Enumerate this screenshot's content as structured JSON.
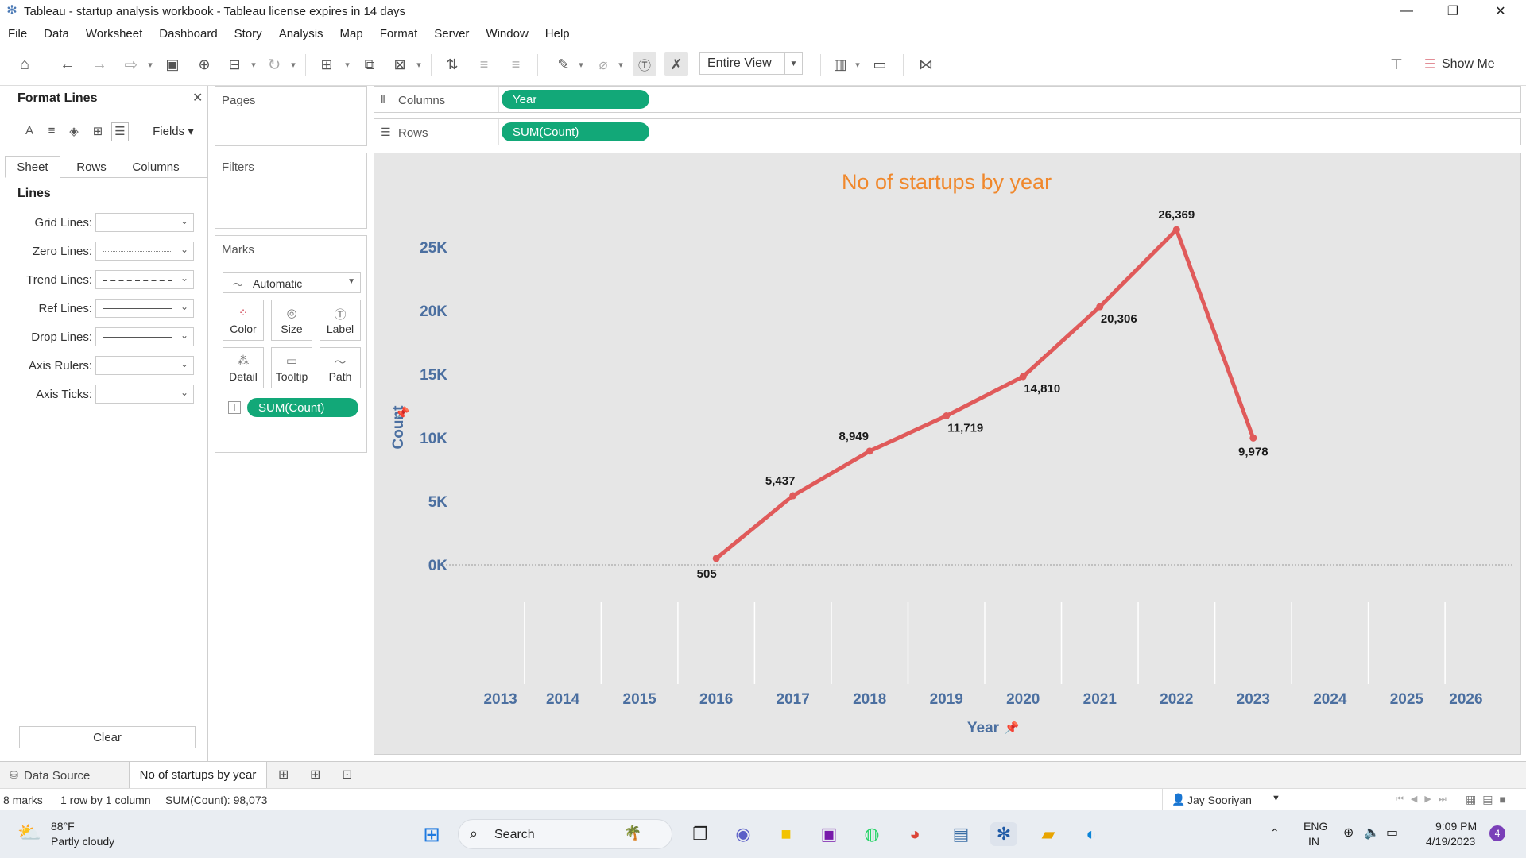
{
  "window": {
    "title": "Tableau - startup analysis workbook - Tableau license expires in 14 days",
    "minimize": "—",
    "restore": "❐",
    "close": "✕"
  },
  "menu": [
    "File",
    "Data",
    "Worksheet",
    "Dashboard",
    "Story",
    "Analysis",
    "Map",
    "Format",
    "Server",
    "Window",
    "Help"
  ],
  "toolbar": {
    "fit_value": "Entire View",
    "show_me": "Show Me"
  },
  "format_panel": {
    "title": "Format Lines",
    "fields_label": "Fields",
    "tabs": [
      "Sheet",
      "Rows",
      "Columns"
    ],
    "section": "Lines",
    "rows": [
      {
        "label": "Grid Lines:",
        "style": "none"
      },
      {
        "label": "Zero Lines:",
        "style": "dotted"
      },
      {
        "label": "Trend Lines:",
        "style": "dashed"
      },
      {
        "label": "Ref Lines:",
        "style": "solid"
      },
      {
        "label": "Drop Lines:",
        "style": "solid"
      },
      {
        "label": "Axis Rulers:",
        "style": "none"
      },
      {
        "label": "Axis Ticks:",
        "style": "none"
      }
    ],
    "clear_label": "Clear"
  },
  "cards": {
    "pages": "Pages",
    "filters": "Filters",
    "marks": "Marks",
    "mark_type": "Automatic",
    "mark_buttons": [
      "Color",
      "Size",
      "Label",
      "Detail",
      "Tooltip",
      "Path"
    ],
    "marks_pill": "SUM(Count)"
  },
  "shelves": {
    "columns_label": "Columns",
    "columns_pill": "Year",
    "rows_label": "Rows",
    "rows_pill": "SUM(Count)"
  },
  "chart_data": {
    "type": "line",
    "title": "No of startups by year",
    "xlabel": "Year",
    "ylabel": "Count",
    "x_ticks": [
      2013,
      2014,
      2015,
      2016,
      2017,
      2018,
      2019,
      2020,
      2021,
      2022,
      2023,
      2024,
      2025,
      2026
    ],
    "y_ticks": [
      "0K",
      "5K",
      "10K",
      "15K",
      "20K",
      "25K"
    ],
    "xlim": [
      2012.6,
      2026.4
    ],
    "ylim": [
      -2000,
      28000
    ],
    "x": [
      2016,
      2017,
      2018,
      2019,
      2020,
      2021,
      2022,
      2023
    ],
    "values": [
      505,
      5437,
      8949,
      11719,
      14810,
      20306,
      26369,
      9978
    ],
    "labels": [
      "505",
      "5,437",
      "8,949",
      "11,719",
      "14,810",
      "20,306",
      "26,369",
      "9,978"
    ],
    "color": "#e05a5a",
    "title_color": "#f0882c",
    "axis_color": "#4b6fa0",
    "grid": false
  },
  "sheet_tabs": {
    "data_source": "Data Source",
    "active_sheet": "No of startups by year"
  },
  "status": {
    "marks": "8 marks",
    "layout": "1 row by 1 column",
    "sum": "SUM(Count): 98,073",
    "user": "Jay Sooriyan"
  },
  "taskbar": {
    "temp": "88°F",
    "weather": "Partly cloudy",
    "search": "Search",
    "lang1": "ENG",
    "lang2": "IN",
    "time": "9:09 PM",
    "date": "4/19/2023",
    "notifications": "4"
  }
}
